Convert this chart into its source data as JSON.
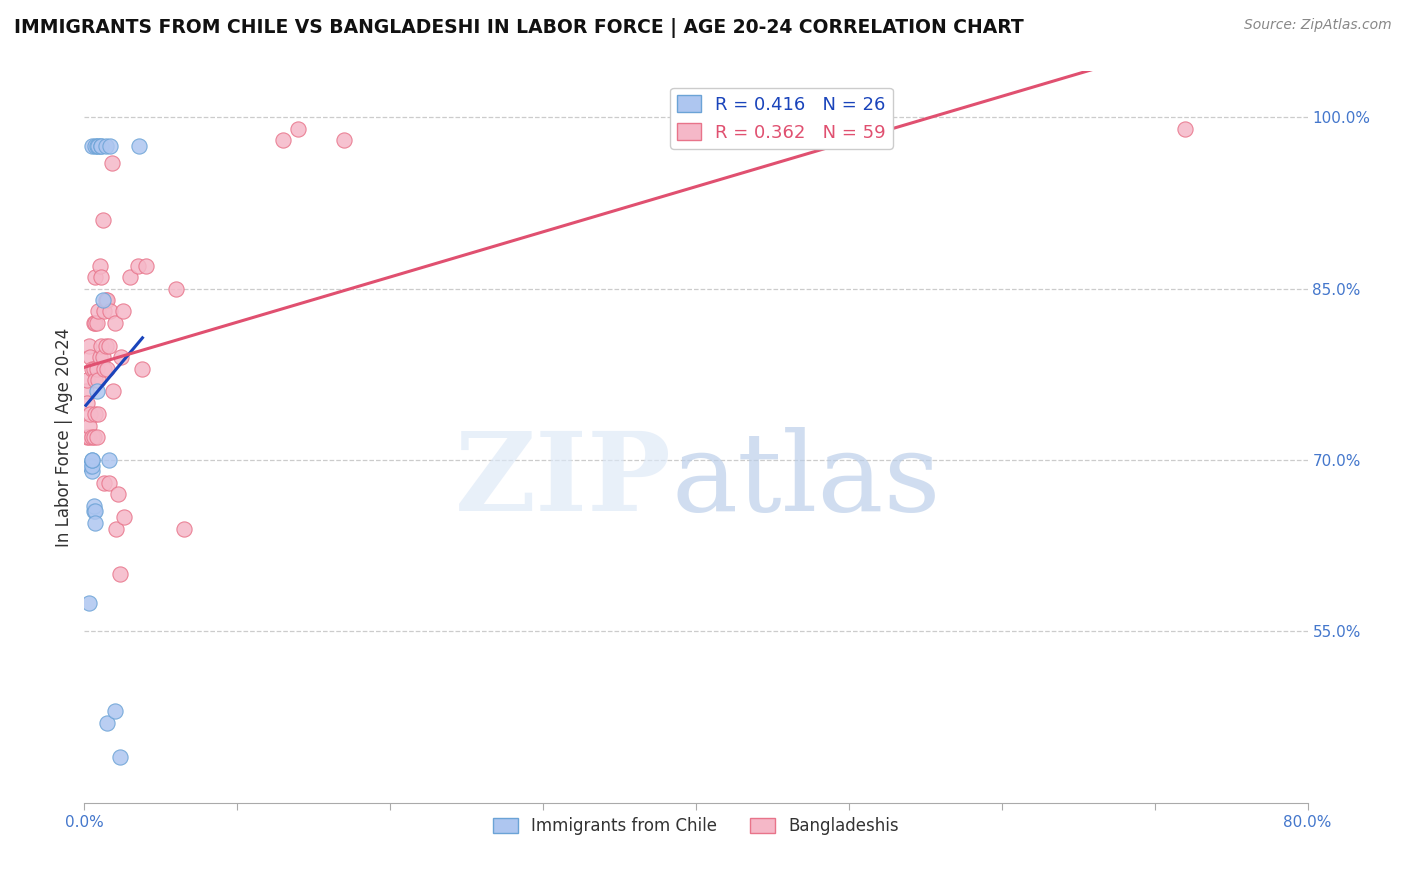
{
  "title": "IMMIGRANTS FROM CHILE VS BANGLADESHI IN LABOR FORCE | AGE 20-24 CORRELATION CHART",
  "source": "Source: ZipAtlas.com",
  "ylabel": "In Labor Force | Age 20-24",
  "xlim": [
    0.0,
    0.8
  ],
  "ylim": [
    0.4,
    1.04
  ],
  "xticks": [
    0.0,
    0.1,
    0.2,
    0.3,
    0.4,
    0.5,
    0.6,
    0.7,
    0.8
  ],
  "xticklabels": [
    "0.0%",
    "",
    "",
    "",
    "",
    "",
    "",
    "",
    "80.0%"
  ],
  "right_yticks": [
    0.55,
    0.7,
    0.85,
    1.0
  ],
  "right_yticklabels": [
    "55.0%",
    "70.0%",
    "85.0%",
    "100.0%"
  ],
  "grid_color": "#cccccc",
  "background_color": "#ffffff",
  "chile_color": "#aec6f0",
  "chile_edge_color": "#6ba3d6",
  "bangladesh_color": "#f5b8c8",
  "bangladesh_edge_color": "#e8748a",
  "legend_label_chile": "R = 0.416   N = 26",
  "legend_label_bangladesh": "R = 0.362   N = 59",
  "legend_series_chile": "Immigrants from Chile",
  "legend_series_bangladesh": "Bangladeshis",
  "blue_line_color": "#1a44bb",
  "pink_line_color": "#e05070",
  "chile_x": [
    0.003,
    0.004,
    0.004,
    0.005,
    0.005,
    0.005,
    0.005,
    0.005,
    0.006,
    0.006,
    0.007,
    0.007,
    0.007,
    0.008,
    0.008,
    0.009,
    0.011,
    0.011,
    0.012,
    0.014,
    0.015,
    0.016,
    0.017,
    0.02,
    0.023,
    0.036
  ],
  "chile_y": [
    0.575,
    0.695,
    0.695,
    0.69,
    0.695,
    0.7,
    0.7,
    0.975,
    0.655,
    0.66,
    0.655,
    0.645,
    0.975,
    0.76,
    0.975,
    0.975,
    0.975,
    0.975,
    0.84,
    0.975,
    0.47,
    0.7,
    0.975,
    0.48,
    0.44,
    0.975
  ],
  "bangladesh_x": [
    0.001,
    0.002,
    0.002,
    0.002,
    0.003,
    0.003,
    0.003,
    0.004,
    0.004,
    0.005,
    0.005,
    0.006,
    0.006,
    0.006,
    0.007,
    0.007,
    0.007,
    0.007,
    0.008,
    0.008,
    0.008,
    0.009,
    0.009,
    0.009,
    0.01,
    0.01,
    0.011,
    0.011,
    0.012,
    0.012,
    0.013,
    0.013,
    0.013,
    0.014,
    0.014,
    0.015,
    0.015,
    0.016,
    0.016,
    0.017,
    0.018,
    0.019,
    0.02,
    0.021,
    0.022,
    0.023,
    0.024,
    0.025,
    0.026,
    0.03,
    0.035,
    0.038,
    0.04,
    0.06,
    0.065,
    0.13,
    0.14,
    0.17,
    0.72
  ],
  "bangladesh_y": [
    0.76,
    0.72,
    0.75,
    0.77,
    0.72,
    0.73,
    0.8,
    0.74,
    0.79,
    0.72,
    0.78,
    0.72,
    0.78,
    0.82,
    0.74,
    0.77,
    0.82,
    0.86,
    0.72,
    0.78,
    0.82,
    0.74,
    0.77,
    0.83,
    0.79,
    0.87,
    0.8,
    0.86,
    0.79,
    0.91,
    0.68,
    0.78,
    0.83,
    0.8,
    0.84,
    0.78,
    0.84,
    0.68,
    0.8,
    0.83,
    0.96,
    0.76,
    0.82,
    0.64,
    0.67,
    0.6,
    0.79,
    0.83,
    0.65,
    0.86,
    0.87,
    0.78,
    0.87,
    0.85,
    0.64,
    0.98,
    0.99,
    0.98,
    0.99
  ],
  "title_fontsize": 13.5,
  "source_fontsize": 10,
  "axis_label_fontsize": 12,
  "tick_fontsize": 11,
  "legend_fontsize": 13,
  "scatter_size": 120,
  "scatter_alpha": 0.85
}
